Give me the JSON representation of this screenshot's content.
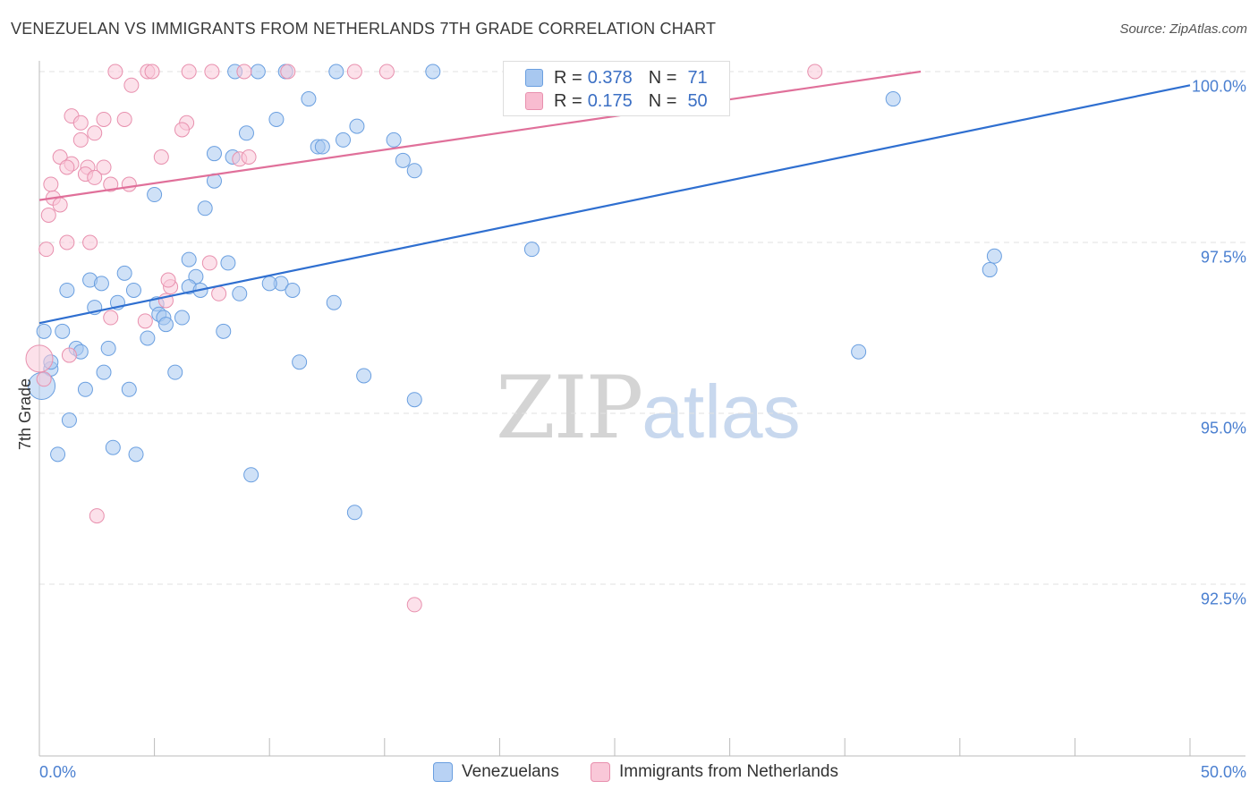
{
  "title": "VENEZUELAN VS IMMIGRANTS FROM NETHERLANDS 7TH GRADE CORRELATION CHART",
  "source": "Source: ZipAtlas.com",
  "watermark": {
    "zip": "ZIP",
    "atlas": "atlas"
  },
  "legend": {
    "rows": [
      {
        "r_label": "R = ",
        "r_value": "0.378",
        "n_label": "N = ",
        "n_value": "71",
        "color": "#a8c8f0",
        "border": "#6a9fe0"
      },
      {
        "r_label": "R = ",
        "r_value": "0.175",
        "n_label": "N = ",
        "n_value": "50",
        "color": "#f8bcd0",
        "border": "#e890ae"
      }
    ]
  },
  "bottom_legend": [
    {
      "label": "Venezuelans",
      "color": "#b8d2f4",
      "border": "#6a9fe0"
    },
    {
      "label": "Immigrants from Netherlands",
      "color": "#f9c8d8",
      "border": "#e890ae"
    }
  ],
  "chart_data": {
    "type": "scatter",
    "title": "VENEZUELAN VS IMMIGRANTS FROM NETHERLANDS 7TH GRADE CORRELATION CHART",
    "xlabel": "",
    "ylabel": "7th Grade",
    "xlim": [
      0,
      50
    ],
    "ylim": [
      90.0,
      100.3
    ],
    "x_tick_labels": [
      "0.0%",
      "50.0%"
    ],
    "y_ticks": [
      {
        "value": 100.0,
        "label": "100.0%"
      },
      {
        "value": 97.5,
        "label": "97.5%"
      },
      {
        "value": 95.0,
        "label": "95.0%"
      },
      {
        "value": 92.5,
        "label": "92.5%"
      }
    ],
    "series": [
      {
        "name": "Venezuelans",
        "color": "#a8c8f0",
        "stroke": "#6a9fe0",
        "line_color": "#2f6fd0",
        "trend": {
          "x": [
            0,
            50
          ],
          "y": [
            96.52,
            100.0
          ]
        },
        "points": [
          [
            8.5,
            100.2
          ],
          [
            9.5,
            100.2
          ],
          [
            10.7,
            100.2
          ],
          [
            12.9,
            100.2
          ],
          [
            17.1,
            100.2
          ],
          [
            11.7,
            99.8
          ],
          [
            20.5,
            99.8
          ],
          [
            37.1,
            99.8
          ],
          [
            10.3,
            99.5
          ],
          [
            13.8,
            99.4
          ],
          [
            9.0,
            99.3
          ],
          [
            13.2,
            99.2
          ],
          [
            15.4,
            99.2
          ],
          [
            12.1,
            99.1
          ],
          [
            12.3,
            99.1
          ],
          [
            7.6,
            99.0
          ],
          [
            8.4,
            98.95
          ],
          [
            15.8,
            98.9
          ],
          [
            16.3,
            98.75
          ],
          [
            7.6,
            98.6
          ],
          [
            5.0,
            98.4
          ],
          [
            7.2,
            98.2
          ],
          [
            21.4,
            97.6
          ],
          [
            41.5,
            97.5
          ],
          [
            6.5,
            97.45
          ],
          [
            8.2,
            97.4
          ],
          [
            41.3,
            97.3
          ],
          [
            3.7,
            97.25
          ],
          [
            2.2,
            97.15
          ],
          [
            6.8,
            97.2
          ],
          [
            10.5,
            97.1
          ],
          [
            6.5,
            97.05
          ],
          [
            2.7,
            97.1
          ],
          [
            1.2,
            97.0
          ],
          [
            4.1,
            97.0
          ],
          [
            12.8,
            96.82
          ],
          [
            8.7,
            96.95
          ],
          [
            3.4,
            96.82
          ],
          [
            5.1,
            96.8
          ],
          [
            2.4,
            96.75
          ],
          [
            5.2,
            96.65
          ],
          [
            5.4,
            96.6
          ],
          [
            6.2,
            96.6
          ],
          [
            5.5,
            96.5
          ],
          [
            0.2,
            96.4
          ],
          [
            1.0,
            96.4
          ],
          [
            8.0,
            96.4
          ],
          [
            4.7,
            96.3
          ],
          [
            1.6,
            96.15
          ],
          [
            3.0,
            96.15
          ],
          [
            1.8,
            96.1
          ],
          [
            35.6,
            96.1
          ],
          [
            0.5,
            95.85
          ],
          [
            0.1,
            95.6
          ],
          [
            11.3,
            95.95
          ],
          [
            2.8,
            95.8
          ],
          [
            5.9,
            95.8
          ],
          [
            14.1,
            95.75
          ],
          [
            2.0,
            95.55
          ],
          [
            3.9,
            95.55
          ],
          [
            16.3,
            95.4
          ],
          [
            1.3,
            95.1
          ],
          [
            0.8,
            94.6
          ],
          [
            3.2,
            94.7
          ],
          [
            4.2,
            94.6
          ],
          [
            9.2,
            94.3
          ],
          [
            13.7,
            93.75
          ],
          [
            0.5,
            95.95
          ],
          [
            7.0,
            97.0
          ],
          [
            10.0,
            97.1
          ],
          [
            11.0,
            97.0
          ]
        ]
      },
      {
        "name": "Immigrants from Netherlands",
        "color": "#f9c8d8",
        "stroke": "#e890ae",
        "line_color": "#e0709a",
        "trend": {
          "x": [
            0,
            38.3
          ],
          "y": [
            98.32,
            100.2
          ]
        },
        "points": [
          [
            3.3,
            100.2
          ],
          [
            4.7,
            100.2
          ],
          [
            4.9,
            100.2
          ],
          [
            6.5,
            100.2
          ],
          [
            7.5,
            100.2
          ],
          [
            8.9,
            100.2
          ],
          [
            10.8,
            100.2
          ],
          [
            13.7,
            100.2
          ],
          [
            15.1,
            100.2
          ],
          [
            33.7,
            100.2
          ],
          [
            4.0,
            100.0
          ],
          [
            1.4,
            99.55
          ],
          [
            2.8,
            99.5
          ],
          [
            3.7,
            99.5
          ],
          [
            1.8,
            99.45
          ],
          [
            6.4,
            99.45
          ],
          [
            6.2,
            99.35
          ],
          [
            2.4,
            99.3
          ],
          [
            1.8,
            99.2
          ],
          [
            0.9,
            98.95
          ],
          [
            5.3,
            98.95
          ],
          [
            8.7,
            98.92
          ],
          [
            9.1,
            98.95
          ],
          [
            1.4,
            98.85
          ],
          [
            1.2,
            98.8
          ],
          [
            2.1,
            98.8
          ],
          [
            2.8,
            98.8
          ],
          [
            2.0,
            98.7
          ],
          [
            2.4,
            98.65
          ],
          [
            3.1,
            98.55
          ],
          [
            3.9,
            98.55
          ],
          [
            0.5,
            98.55
          ],
          [
            0.6,
            98.35
          ],
          [
            0.9,
            98.25
          ],
          [
            0.4,
            98.1
          ],
          [
            1.2,
            97.7
          ],
          [
            2.2,
            97.7
          ],
          [
            0.3,
            97.6
          ],
          [
            7.4,
            97.4
          ],
          [
            5.7,
            97.05
          ],
          [
            5.5,
            96.85
          ],
          [
            3.1,
            96.6
          ],
          [
            4.6,
            96.55
          ],
          [
            0.0,
            96.0
          ],
          [
            1.3,
            96.05
          ],
          [
            0.2,
            95.7
          ],
          [
            2.5,
            93.7
          ],
          [
            16.3,
            92.4
          ],
          [
            5.6,
            97.15
          ],
          [
            7.8,
            96.95
          ]
        ]
      }
    ]
  }
}
